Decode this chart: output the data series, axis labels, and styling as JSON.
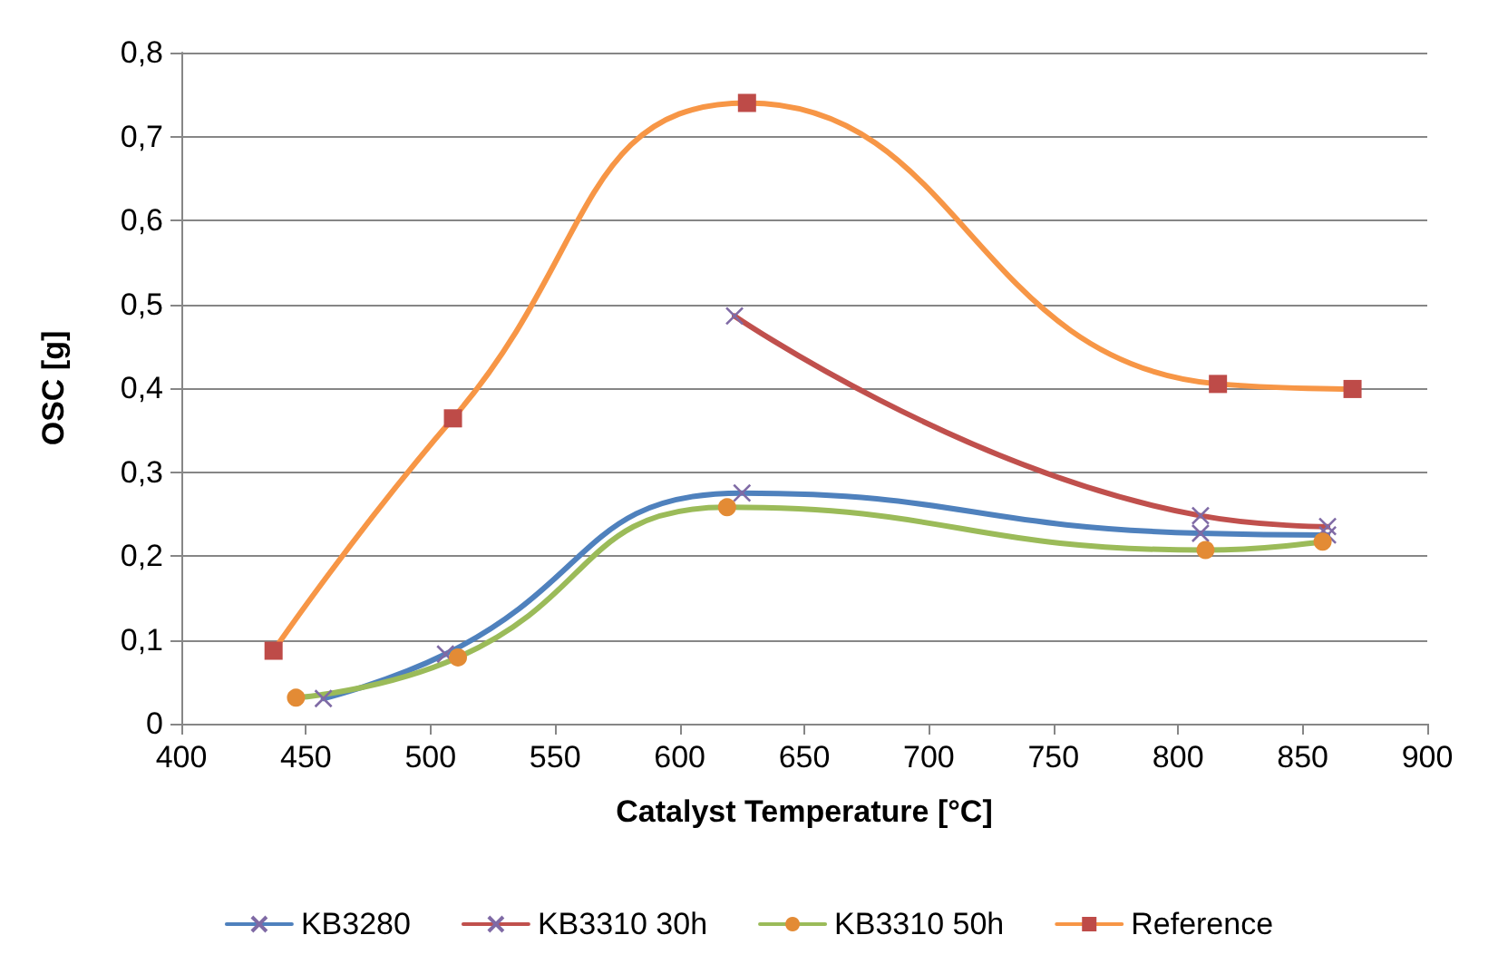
{
  "chart_data": {
    "type": "line",
    "xlabel": "Catalyst Temperature [°C]",
    "ylabel": "OSC [g]",
    "xlim": [
      400,
      900
    ],
    "xticks": [
      400,
      450,
      500,
      550,
      600,
      650,
      700,
      750,
      800,
      850,
      900
    ],
    "ylim": [
      0,
      0.8
    ],
    "yticks": [
      0,
      {
        "value": 0.1,
        "label": "0,1"
      },
      {
        "value": 0.2,
        "label": "0,2"
      },
      {
        "value": 0.3,
        "label": "0,3"
      },
      {
        "value": 0.4,
        "label": "0,4"
      },
      {
        "value": 0.5,
        "label": "0,5"
      },
      {
        "value": 0.6,
        "label": "0,6"
      },
      {
        "value": 0.7,
        "label": "0,7"
      },
      {
        "value": 0.8,
        "label": "0,8"
      }
    ],
    "grid": "y",
    "legend": "bottom",
    "line_style": "solid",
    "series": [
      {
        "name": "KB3280",
        "color": "#4f81bd",
        "marker": "cross",
        "x": [
          457,
          506,
          625,
          809,
          860
        ],
        "values": [
          0.03,
          0.083,
          0.275,
          0.227,
          0.225
        ]
      },
      {
        "name": "KB3310 30h",
        "color": "#c0504d",
        "marker": "cross",
        "x": [
          622,
          809,
          860
        ],
        "values": [
          0.486,
          0.248,
          0.235
        ]
      },
      {
        "name": "KB3310 50h",
        "color": "#9bbb59",
        "marker": "circle",
        "x": [
          446,
          511,
          619,
          811,
          858
        ],
        "values": [
          0.031,
          0.079,
          0.258,
          0.207,
          0.217
        ]
      },
      {
        "name": "Reference",
        "color": "#f79646",
        "marker": "square",
        "x": [
          437,
          509,
          627,
          816,
          870
        ],
        "values": [
          0.087,
          0.364,
          0.74,
          0.405,
          0.399
        ]
      }
    ]
  }
}
